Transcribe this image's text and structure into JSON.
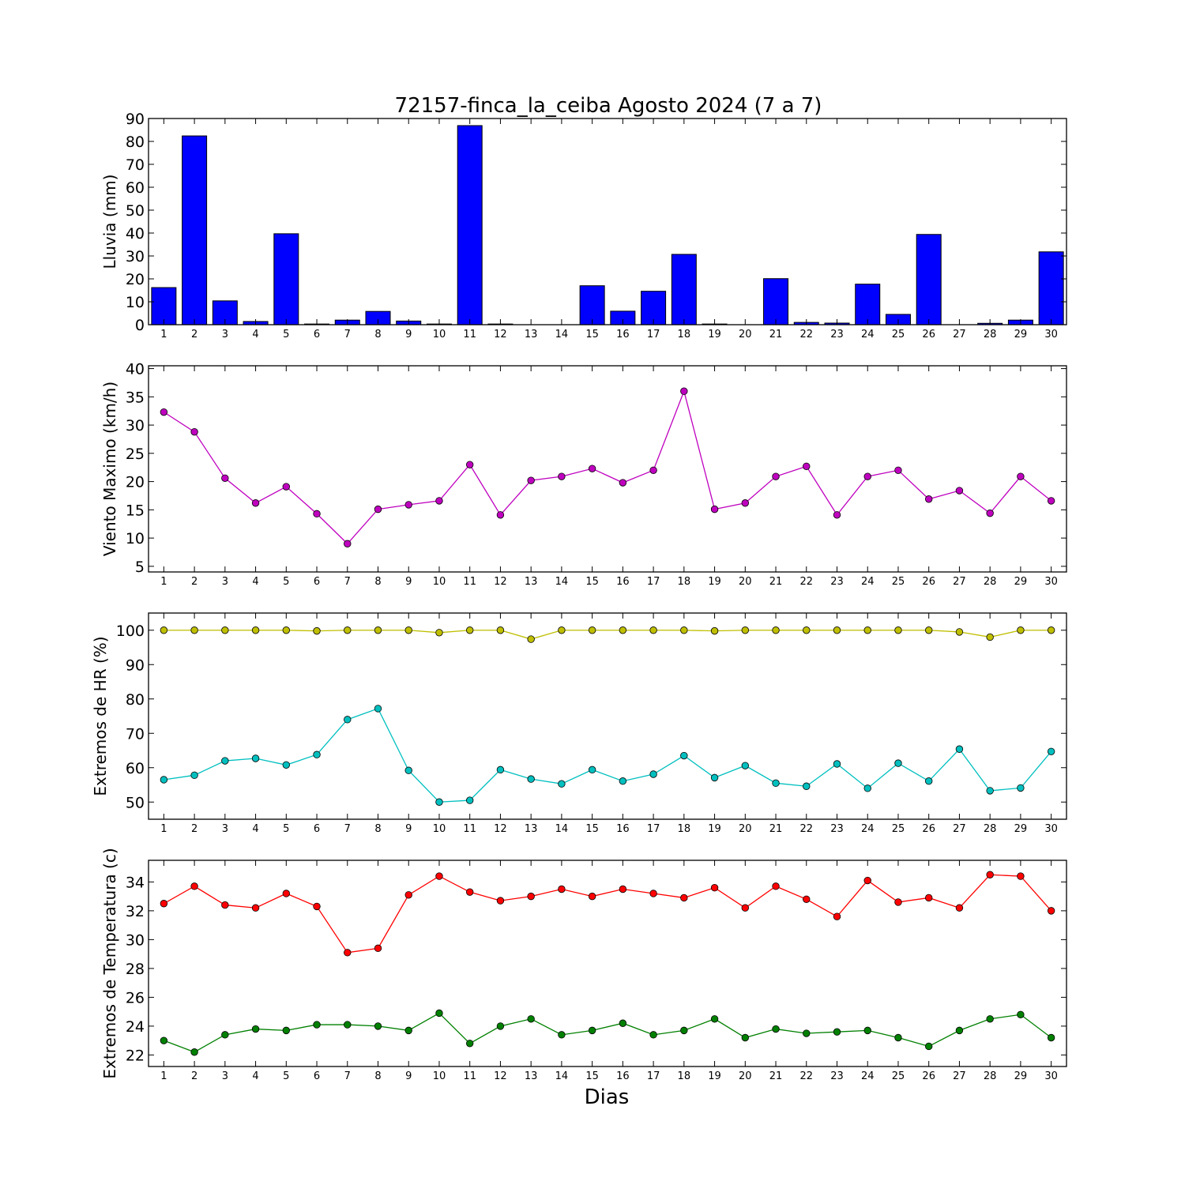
{
  "title": "72157-finca_la_ceiba Agosto 2024  (7 a 7)",
  "xlabel": "Dias",
  "colors": {
    "rain": "#0000ff",
    "wind": "#bf00bf",
    "hr_max": "#bfbf00",
    "hr_min": "#00bfbf",
    "temp_max": "#ff0000",
    "temp_min": "#008000"
  },
  "chart_data": [
    {
      "type": "bar",
      "ylabel": "Lluvia (mm)",
      "ylim": [
        0,
        90
      ],
      "yticks": [
        "0",
        "10",
        "20",
        "30",
        "40",
        "50",
        "60",
        "70",
        "80",
        "90"
      ],
      "categories": [
        "1",
        "2",
        "3",
        "4",
        "5",
        "6",
        "7",
        "8",
        "9",
        "10",
        "11",
        "12",
        "13",
        "14",
        "15",
        "16",
        "17",
        "18",
        "19",
        "20",
        "21",
        "22",
        "23",
        "24",
        "25",
        "26",
        "27",
        "28",
        "29",
        "30"
      ],
      "series": [
        {
          "values": [
            16.2,
            82.4,
            10.4,
            1.4,
            39.7,
            0.3,
            2.0,
            5.8,
            1.6,
            0.3,
            86.9,
            0.3,
            0,
            0,
            17.0,
            5.9,
            14.6,
            30.7,
            0.3,
            0,
            20.1,
            1.0,
            0.7,
            17.7,
            4.5,
            39.4,
            0,
            0.6,
            2.0,
            31.8
          ]
        }
      ],
      "grid": false
    },
    {
      "type": "line",
      "ylabel": "Viento Maximo (km/h)",
      "ylim": [
        4,
        40.5
      ],
      "yticks": [
        "5",
        "10",
        "15",
        "20",
        "25",
        "30",
        "35",
        "40"
      ],
      "categories": [
        "1",
        "2",
        "3",
        "4",
        "5",
        "6",
        "7",
        "8",
        "9",
        "10",
        "11",
        "12",
        "13",
        "14",
        "15",
        "16",
        "17",
        "18",
        "19",
        "20",
        "21",
        "22",
        "23",
        "24",
        "25",
        "26",
        "27",
        "28",
        "29",
        "30"
      ],
      "series": [
        {
          "values": [
            32.3,
            28.8,
            20.6,
            16.2,
            19.1,
            14.3,
            9.0,
            15.1,
            15.9,
            16.6,
            23.0,
            14.1,
            20.2,
            20.9,
            22.3,
            19.8,
            22.0,
            36.0,
            15.1,
            16.2,
            20.9,
            22.7,
            14.1,
            20.9,
            22.0,
            16.9,
            18.4,
            14.4,
            20.9,
            16.6
          ]
        }
      ],
      "grid": false
    },
    {
      "type": "line",
      "ylabel": "Extremos de HR (%)",
      "ylim": [
        45,
        105
      ],
      "yticks": [
        "50",
        "60",
        "70",
        "80",
        "90",
        "100"
      ],
      "categories": [
        "1",
        "2",
        "3",
        "4",
        "5",
        "6",
        "7",
        "8",
        "9",
        "10",
        "11",
        "12",
        "13",
        "14",
        "15",
        "16",
        "17",
        "18",
        "19",
        "20",
        "21",
        "22",
        "23",
        "24",
        "25",
        "26",
        "27",
        "28",
        "29",
        "30"
      ],
      "series": [
        {
          "values": [
            100,
            100,
            100,
            100,
            100,
            99.8,
            100,
            100,
            100,
            99.3,
            100,
            100,
            97.4,
            100,
            100,
            100,
            100,
            100,
            99.8,
            100,
            100,
            100,
            100,
            100,
            100,
            100,
            99.5,
            98.0,
            100,
            100
          ]
        },
        {
          "values": [
            56.5,
            57.8,
            62.0,
            62.7,
            60.8,
            63.8,
            74.0,
            77.2,
            59.2,
            50.0,
            50.5,
            59.4,
            56.7,
            55.3,
            59.4,
            56.1,
            58.1,
            63.5,
            57.1,
            60.6,
            55.5,
            54.6,
            61.1,
            54.0,
            61.3,
            56.1,
            65.4,
            53.3,
            54.1,
            64.7
          ]
        }
      ],
      "grid": false
    },
    {
      "type": "line",
      "ylabel": "Extremos de Temperatura (c)",
      "ylim": [
        21.2,
        35.5
      ],
      "yticks": [
        "22",
        "24",
        "26",
        "28",
        "30",
        "32",
        "34"
      ],
      "categories": [
        "1",
        "2",
        "3",
        "4",
        "5",
        "6",
        "7",
        "8",
        "9",
        "10",
        "11",
        "12",
        "13",
        "14",
        "15",
        "16",
        "17",
        "18",
        "19",
        "20",
        "21",
        "22",
        "23",
        "24",
        "25",
        "26",
        "27",
        "28",
        "29",
        "30"
      ],
      "series": [
        {
          "values": [
            32.5,
            33.7,
            32.4,
            32.2,
            33.2,
            32.3,
            29.1,
            29.4,
            33.1,
            34.4,
            33.3,
            32.7,
            33.0,
            33.5,
            33.0,
            33.5,
            33.2,
            32.9,
            33.6,
            32.2,
            33.7,
            32.8,
            31.6,
            34.1,
            32.6,
            32.9,
            32.2,
            34.5,
            34.4,
            32.0
          ]
        },
        {
          "values": [
            23.0,
            22.2,
            23.4,
            23.8,
            23.7,
            24.1,
            24.1,
            24.0,
            23.7,
            24.9,
            22.8,
            24.0,
            24.5,
            23.4,
            23.7,
            24.2,
            23.4,
            23.7,
            24.5,
            23.2,
            23.8,
            23.5,
            23.6,
            23.7,
            23.2,
            22.6,
            23.7,
            24.5,
            24.8,
            23.2
          ]
        }
      ],
      "grid": false
    }
  ]
}
